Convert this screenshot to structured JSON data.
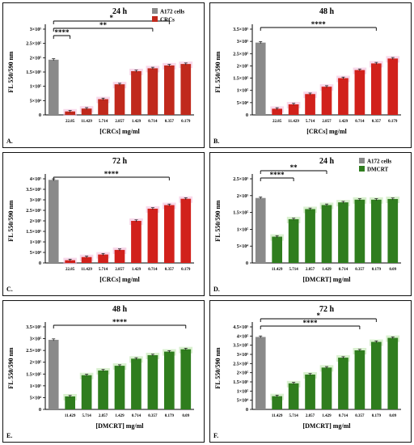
{
  "chart_data": [
    {
      "type": "bar",
      "panel_label": "A.",
      "title": "24 h",
      "xlabel": "[CRCs] mg/ml",
      "ylabel": "FL 550/590 nm",
      "ylim": [
        0,
        300000
      ],
      "yticks": [
        0,
        50000,
        100000,
        150000,
        200000,
        250000,
        300000
      ],
      "ytick_labels": [
        "0",
        "5×10⁴",
        "1×10⁵",
        "1.5×10⁵",
        "2×10⁵",
        "2.5×10⁵",
        "3×10⁵"
      ],
      "control_label": "A172 cells",
      "series_label": "CRCs",
      "control_value": 193000,
      "categories": [
        "22.85",
        "11.429",
        "5.714",
        "2.857",
        "1.429",
        "0.714",
        "0.357",
        "0.179"
      ],
      "values": [
        12000,
        22000,
        55000,
        107000,
        153000,
        163000,
        173000,
        178000
      ],
      "legend": [
        "A172 cells",
        "CRCs"
      ],
      "legend_position": "top-right",
      "significance": [
        {
          "label": "*",
          "to": 7
        },
        {
          "label": "**",
          "to": 6
        },
        {
          "label": "****",
          "to": 1
        }
      ],
      "colors": {
        "control": "#8a8a8a",
        "series": "#c0291c"
      }
    },
    {
      "type": "bar",
      "panel_label": "B.",
      "title": "48 h",
      "xlabel": "[CRCs] mg/ml",
      "ylabel": "FL 550/590 nm",
      "ylim": [
        0,
        350000
      ],
      "yticks": [
        0,
        50000,
        100000,
        150000,
        200000,
        250000,
        300000,
        350000
      ],
      "ytick_labels": [
        "0",
        "5×10⁴",
        "1×10⁵",
        "1.5×10⁵",
        "2×10⁵",
        "2.5×10⁵",
        "3×10⁵",
        "3.5×10⁵"
      ],
      "control_value": 295000,
      "categories": [
        "22.85",
        "11.429",
        "5.714",
        "2.857",
        "1.429",
        "0.714",
        "0.357",
        "0.179"
      ],
      "values": [
        25000,
        43000,
        85000,
        115000,
        150000,
        183000,
        210000,
        230000
      ],
      "significance": [
        {
          "label": "****",
          "to": 7
        }
      ],
      "colors": {
        "control": "#8a8a8a",
        "series": "#d1211b"
      }
    },
    {
      "type": "bar",
      "panel_label": "C.",
      "title": "72 h",
      "xlabel": "[CRCs] mg/ml",
      "ylabel": "FL 550/590 nm",
      "ylim": [
        0,
        400000
      ],
      "yticks": [
        0,
        50000,
        100000,
        150000,
        200000,
        250000,
        300000,
        350000,
        400000
      ],
      "ytick_labels": [
        "0",
        "5×10⁴",
        "1×10⁵",
        "1.5×10⁵",
        "2×10⁵",
        "2.5×10⁵",
        "3×10⁵",
        "3.5×10⁵",
        "4×10⁵"
      ],
      "control_value": 395000,
      "categories": [
        "22.85",
        "11.429",
        "5.714",
        "2.857",
        "1.429",
        "0.714",
        "0.357",
        "0.179"
      ],
      "values": [
        13000,
        28000,
        40000,
        62000,
        200000,
        258000,
        275000,
        305000
      ],
      "significance": [
        {
          "label": "****",
          "to": 7
        }
      ],
      "colors": {
        "control": "#8a8a8a",
        "series": "#d1211b"
      }
    },
    {
      "type": "bar",
      "panel_label": "D.",
      "title": "24 h",
      "xlabel": "[DMCRT] mg/ml",
      "ylabel": "FL 550/590 nm",
      "ylim": [
        0,
        250000
      ],
      "yticks": [
        0,
        50000,
        100000,
        150000,
        200000,
        250000
      ],
      "ytick_labels": [
        "0",
        "5×10⁴",
        "1×10⁵",
        "1.5×10⁵",
        "2×10⁵",
        "2.5×10⁵"
      ],
      "control_label": "A172 cells",
      "series_label": "DMCRT",
      "control_value": 193000,
      "categories": [
        "11.429",
        "5.714",
        "2.857",
        "1.429",
        "0.714",
        "0.357",
        "0.179",
        "0.09"
      ],
      "values": [
        78000,
        130000,
        160000,
        172000,
        180000,
        188000,
        188000,
        190000
      ],
      "legend": [
        "A172 cells",
        "DMCRT"
      ],
      "legend_position": "top-right",
      "significance": [
        {
          "label": "**",
          "to": 4
        },
        {
          "label": "****",
          "to": 2
        }
      ],
      "colors": {
        "control": "#8a8a8a",
        "series": "#2f7d1e"
      }
    },
    {
      "type": "bar",
      "panel_label": "E.",
      "title": "48 h",
      "xlabel": "[DMCRT] mg/ml",
      "ylabel": "FL 550/590 nm",
      "ylim": [
        0,
        350000
      ],
      "yticks": [
        0,
        50000,
        100000,
        150000,
        200000,
        250000,
        300000,
        350000
      ],
      "ytick_labels": [
        "0",
        "5×10⁴",
        "1×10⁵",
        "1.5×10⁵",
        "2×10⁵",
        "2.5×10⁵",
        "3×10⁵",
        "3.5×10⁵"
      ],
      "control_value": 295000,
      "categories": [
        "11.429",
        "5.714",
        "2.857",
        "1.429",
        "0.714",
        "0.357",
        "0.179",
        "0.09"
      ],
      "values": [
        55000,
        145000,
        165000,
        185000,
        215000,
        230000,
        245000,
        255000
      ],
      "significance": [
        {
          "label": "****",
          "to": 8
        }
      ],
      "colors": {
        "control": "#8a8a8a",
        "series": "#2f7d1e"
      }
    },
    {
      "type": "bar",
      "panel_label": "F.",
      "title": "72 h",
      "xlabel": "[DMCRT] mg/ml",
      "ylabel": "FL 550/590 nm",
      "ylim": [
        0,
        450000
      ],
      "yticks": [
        0,
        50000,
        100000,
        150000,
        200000,
        250000,
        300000,
        350000,
        400000,
        450000
      ],
      "ytick_labels": [
        "0",
        "5×10⁴",
        "1×10⁵",
        "1.5×10⁵",
        "2×10⁵",
        "2.5×10⁵",
        "3×10⁵",
        "3.5×10⁵",
        "4×10⁵",
        "4.5×10⁵"
      ],
      "control_value": 395000,
      "categories": [
        "11.429",
        "5.714",
        "2.857",
        "1.429",
        "0.714",
        "0.357",
        "0.179",
        "0.09"
      ],
      "values": [
        72000,
        142000,
        190000,
        228000,
        282000,
        322000,
        368000,
        390000
      ],
      "significance": [
        {
          "label": "*",
          "to": 7
        },
        {
          "label": "****",
          "to": 6
        }
      ],
      "colors": {
        "control": "#8a8a8a",
        "series": "#2f7d1e"
      }
    }
  ]
}
